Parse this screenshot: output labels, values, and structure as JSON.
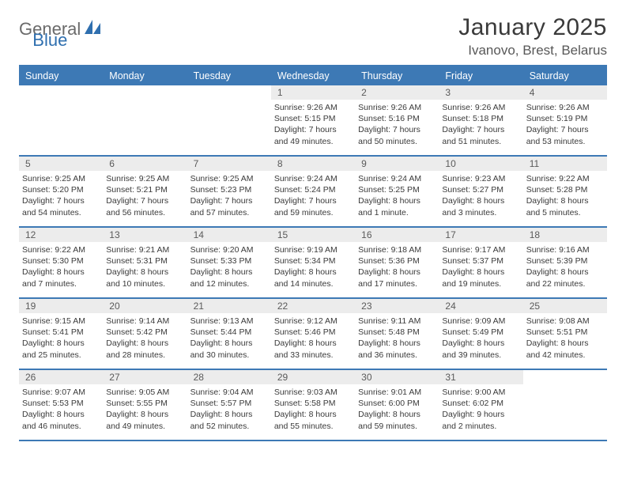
{
  "logo": {
    "text1": "General",
    "text2": "Blue",
    "color_gray": "#6a6a6a",
    "color_blue": "#2f6faf"
  },
  "title": "January 2025",
  "location": "Ivanovo, Brest, Belarus",
  "colors": {
    "header_bg": "#3d79b5",
    "rule": "#3d79b5",
    "daynum_bg": "#ececec",
    "text": "#3a3a3a",
    "muted": "#5a5a5a",
    "page_bg": "#ffffff"
  },
  "typography": {
    "month_title_size": 30,
    "location_size": 17,
    "weekday_size": 12.5,
    "daynum_size": 12,
    "daydata_size": 10.5
  },
  "layout": {
    "columns": 7,
    "rows": 5,
    "leading_blanks": 3,
    "days_in_month": 31
  },
  "weekdays": [
    "Sunday",
    "Monday",
    "Tuesday",
    "Wednesday",
    "Thursday",
    "Friday",
    "Saturday"
  ],
  "days": [
    {
      "n": 1,
      "sr": "9:26 AM",
      "ss": "5:15 PM",
      "dl": "7 hours and 49 minutes."
    },
    {
      "n": 2,
      "sr": "9:26 AM",
      "ss": "5:16 PM",
      "dl": "7 hours and 50 minutes."
    },
    {
      "n": 3,
      "sr": "9:26 AM",
      "ss": "5:18 PM",
      "dl": "7 hours and 51 minutes."
    },
    {
      "n": 4,
      "sr": "9:26 AM",
      "ss": "5:19 PM",
      "dl": "7 hours and 53 minutes."
    },
    {
      "n": 5,
      "sr": "9:25 AM",
      "ss": "5:20 PM",
      "dl": "7 hours and 54 minutes."
    },
    {
      "n": 6,
      "sr": "9:25 AM",
      "ss": "5:21 PM",
      "dl": "7 hours and 56 minutes."
    },
    {
      "n": 7,
      "sr": "9:25 AM",
      "ss": "5:23 PM",
      "dl": "7 hours and 57 minutes."
    },
    {
      "n": 8,
      "sr": "9:24 AM",
      "ss": "5:24 PM",
      "dl": "7 hours and 59 minutes."
    },
    {
      "n": 9,
      "sr": "9:24 AM",
      "ss": "5:25 PM",
      "dl": "8 hours and 1 minute."
    },
    {
      "n": 10,
      "sr": "9:23 AM",
      "ss": "5:27 PM",
      "dl": "8 hours and 3 minutes."
    },
    {
      "n": 11,
      "sr": "9:22 AM",
      "ss": "5:28 PM",
      "dl": "8 hours and 5 minutes."
    },
    {
      "n": 12,
      "sr": "9:22 AM",
      "ss": "5:30 PM",
      "dl": "8 hours and 7 minutes."
    },
    {
      "n": 13,
      "sr": "9:21 AM",
      "ss": "5:31 PM",
      "dl": "8 hours and 10 minutes."
    },
    {
      "n": 14,
      "sr": "9:20 AM",
      "ss": "5:33 PM",
      "dl": "8 hours and 12 minutes."
    },
    {
      "n": 15,
      "sr": "9:19 AM",
      "ss": "5:34 PM",
      "dl": "8 hours and 14 minutes."
    },
    {
      "n": 16,
      "sr": "9:18 AM",
      "ss": "5:36 PM",
      "dl": "8 hours and 17 minutes."
    },
    {
      "n": 17,
      "sr": "9:17 AM",
      "ss": "5:37 PM",
      "dl": "8 hours and 19 minutes."
    },
    {
      "n": 18,
      "sr": "9:16 AM",
      "ss": "5:39 PM",
      "dl": "8 hours and 22 minutes."
    },
    {
      "n": 19,
      "sr": "9:15 AM",
      "ss": "5:41 PM",
      "dl": "8 hours and 25 minutes."
    },
    {
      "n": 20,
      "sr": "9:14 AM",
      "ss": "5:42 PM",
      "dl": "8 hours and 28 minutes."
    },
    {
      "n": 21,
      "sr": "9:13 AM",
      "ss": "5:44 PM",
      "dl": "8 hours and 30 minutes."
    },
    {
      "n": 22,
      "sr": "9:12 AM",
      "ss": "5:46 PM",
      "dl": "8 hours and 33 minutes."
    },
    {
      "n": 23,
      "sr": "9:11 AM",
      "ss": "5:48 PM",
      "dl": "8 hours and 36 minutes."
    },
    {
      "n": 24,
      "sr": "9:09 AM",
      "ss": "5:49 PM",
      "dl": "8 hours and 39 minutes."
    },
    {
      "n": 25,
      "sr": "9:08 AM",
      "ss": "5:51 PM",
      "dl": "8 hours and 42 minutes."
    },
    {
      "n": 26,
      "sr": "9:07 AM",
      "ss": "5:53 PM",
      "dl": "8 hours and 46 minutes."
    },
    {
      "n": 27,
      "sr": "9:05 AM",
      "ss": "5:55 PM",
      "dl": "8 hours and 49 minutes."
    },
    {
      "n": 28,
      "sr": "9:04 AM",
      "ss": "5:57 PM",
      "dl": "8 hours and 52 minutes."
    },
    {
      "n": 29,
      "sr": "9:03 AM",
      "ss": "5:58 PM",
      "dl": "8 hours and 55 minutes."
    },
    {
      "n": 30,
      "sr": "9:01 AM",
      "ss": "6:00 PM",
      "dl": "8 hours and 59 minutes."
    },
    {
      "n": 31,
      "sr": "9:00 AM",
      "ss": "6:02 PM",
      "dl": "9 hours and 2 minutes."
    }
  ],
  "labels": {
    "sunrise": "Sunrise:",
    "sunset": "Sunset:",
    "daylight": "Daylight:"
  }
}
